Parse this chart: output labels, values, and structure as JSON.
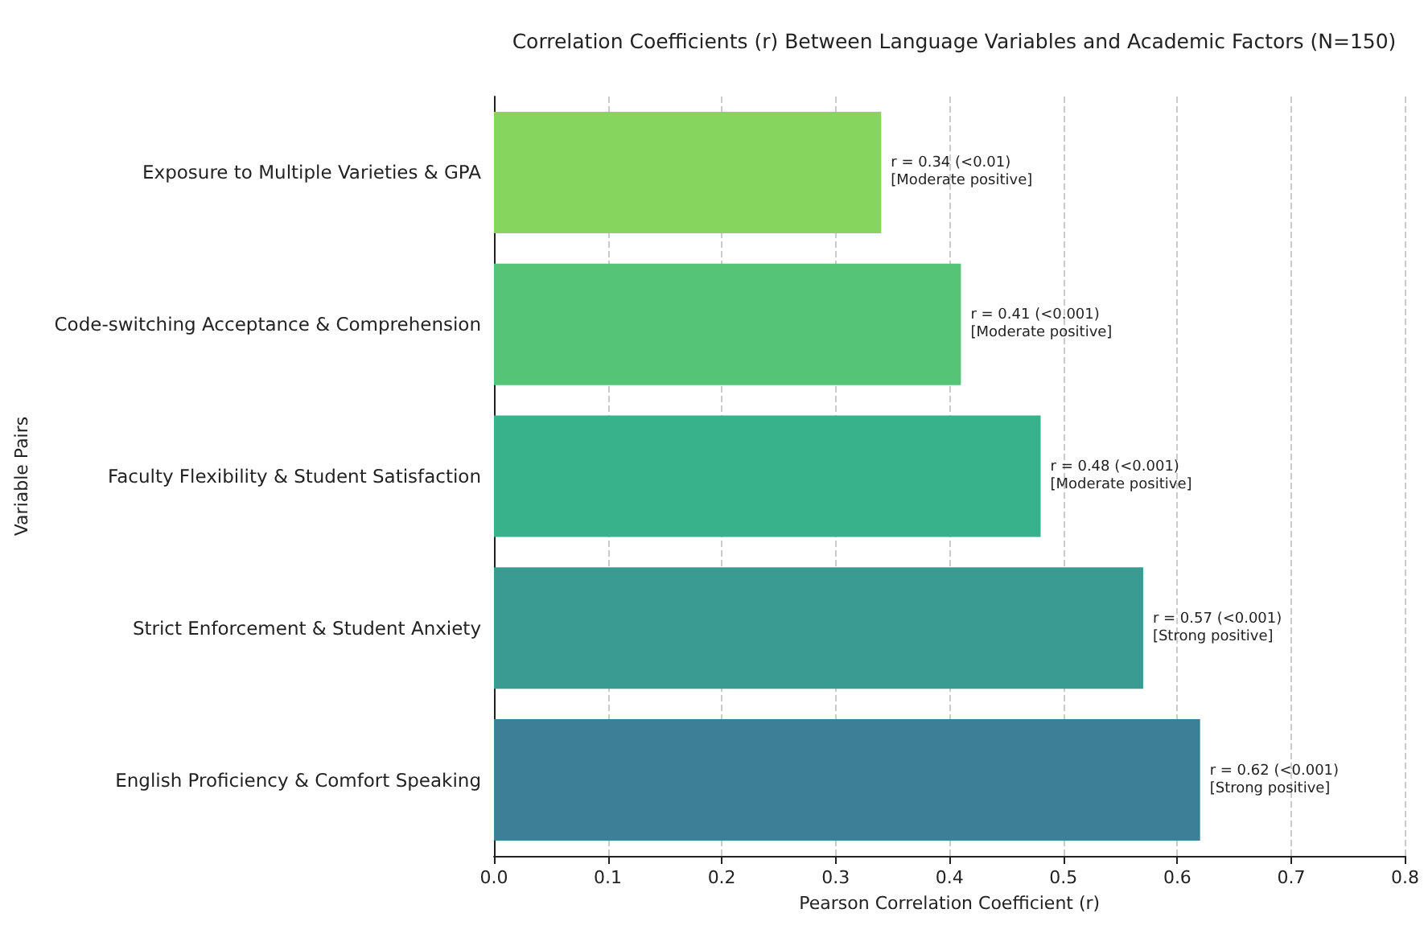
{
  "chart_data": {
    "type": "bar",
    "orientation": "horizontal",
    "title": "Correlation Coefficients (r) Between Language Variables and Academic Factors (N=150)",
    "xlabel": "Pearson Correlation Coefficient (r)",
    "ylabel": "Variable Pairs",
    "categories": [
      "Exposure to Multiple Varieties & GPA",
      "Code-switching Acceptance & Comprehension",
      "Faculty Flexibility & Student Satisfaction",
      "Strict Enforcement & Student Anxiety",
      "English Proficiency & Comfort Speaking"
    ],
    "values": [
      0.34,
      0.41,
      0.48,
      0.57,
      0.62
    ],
    "colors": [
      "#86d55f",
      "#55c477",
      "#37b28a",
      "#3a9b93",
      "#3e7f98"
    ],
    "value_labels": [
      "r = 0.34 (<0.01)\n[Moderate positive]",
      "r = 0.41 (<0.001)\n[Moderate positive]",
      "r = 0.48 (<0.001)\n[Moderate positive]",
      "r = 0.57 (<0.001)\n[Strong positive]",
      "r = 0.62 (<0.001)\n[Strong positive]"
    ],
    "xlim": [
      0,
      0.8
    ],
    "xticks": [
      {
        "value": 0,
        "label": "0.0"
      },
      {
        "value": 0.1,
        "label": "0.1"
      },
      {
        "value": 0.2,
        "label": "0.2"
      },
      {
        "value": 0.3,
        "label": "0.3"
      },
      {
        "value": 0.4,
        "label": "0.4"
      },
      {
        "value": 0.5,
        "label": "0.5"
      },
      {
        "value": 0.6,
        "label": "0.6"
      },
      {
        "value": 0.7,
        "label": "0.7"
      },
      {
        "value": 0.8,
        "label": "0.8"
      }
    ],
    "grid": "x"
  }
}
